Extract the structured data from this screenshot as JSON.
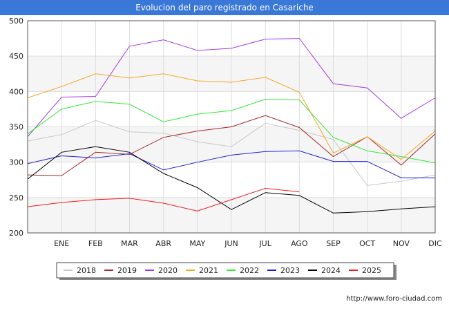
{
  "header": {
    "title": "Evolucion del paro registrado en Casariche"
  },
  "footer": {
    "url": "http://www.foro-ciudad.com"
  },
  "chart_data": {
    "type": "line",
    "title": "Evolucion del paro registrado en Casariche",
    "xlabel": "",
    "ylabel": "",
    "categories": [
      "",
      "ENE",
      "FEB",
      "MAR",
      "ABR",
      "MAY",
      "JUN",
      "JUL",
      "AGO",
      "SEP",
      "OCT",
      "NOV",
      "DIC"
    ],
    "ylim": [
      200,
      500
    ],
    "yticks": [
      200,
      250,
      300,
      350,
      400,
      450,
      500
    ],
    "grid": true,
    "legend_position": "bottom",
    "series": [
      {
        "name": "2018",
        "color": "#c8c8c8",
        "values": [
          330,
          339,
          359,
          343,
          341,
          329,
          322,
          355,
          345,
          332,
          267,
          273,
          282
        ]
      },
      {
        "name": "2019",
        "color": "#a52a2a",
        "values": [
          282,
          281,
          314,
          311,
          335,
          344,
          350,
          366,
          349,
          308,
          336,
          296,
          340
        ]
      },
      {
        "name": "2020",
        "color": "#a63ae0",
        "values": [
          336,
          392,
          393,
          464,
          473,
          458,
          461,
          474,
          475,
          411,
          405,
          362,
          391
        ]
      },
      {
        "name": "2021",
        "color": "#f5a623",
        "values": [
          391,
          407,
          425,
          419,
          425,
          415,
          413,
          420,
          399,
          313,
          336,
          304,
          344
        ]
      },
      {
        "name": "2022",
        "color": "#33e833",
        "values": [
          340,
          375,
          386,
          382,
          357,
          368,
          373,
          389,
          388,
          335,
          316,
          308,
          299
        ]
      },
      {
        "name": "2023",
        "color": "#1d1dd6",
        "values": [
          298,
          309,
          306,
          312,
          289,
          300,
          310,
          315,
          316,
          301,
          301,
          278,
          278
        ]
      },
      {
        "name": "2024",
        "color": "#000000",
        "values": [
          276,
          314,
          322,
          314,
          284,
          264,
          233,
          257,
          253,
          228,
          230,
          234,
          237
        ]
      },
      {
        "name": "2025",
        "color": "#ee1c1c",
        "values": [
          237,
          243,
          247,
          249,
          242,
          231,
          247,
          263,
          258,
          null,
          null,
          null,
          null
        ]
      }
    ]
  }
}
